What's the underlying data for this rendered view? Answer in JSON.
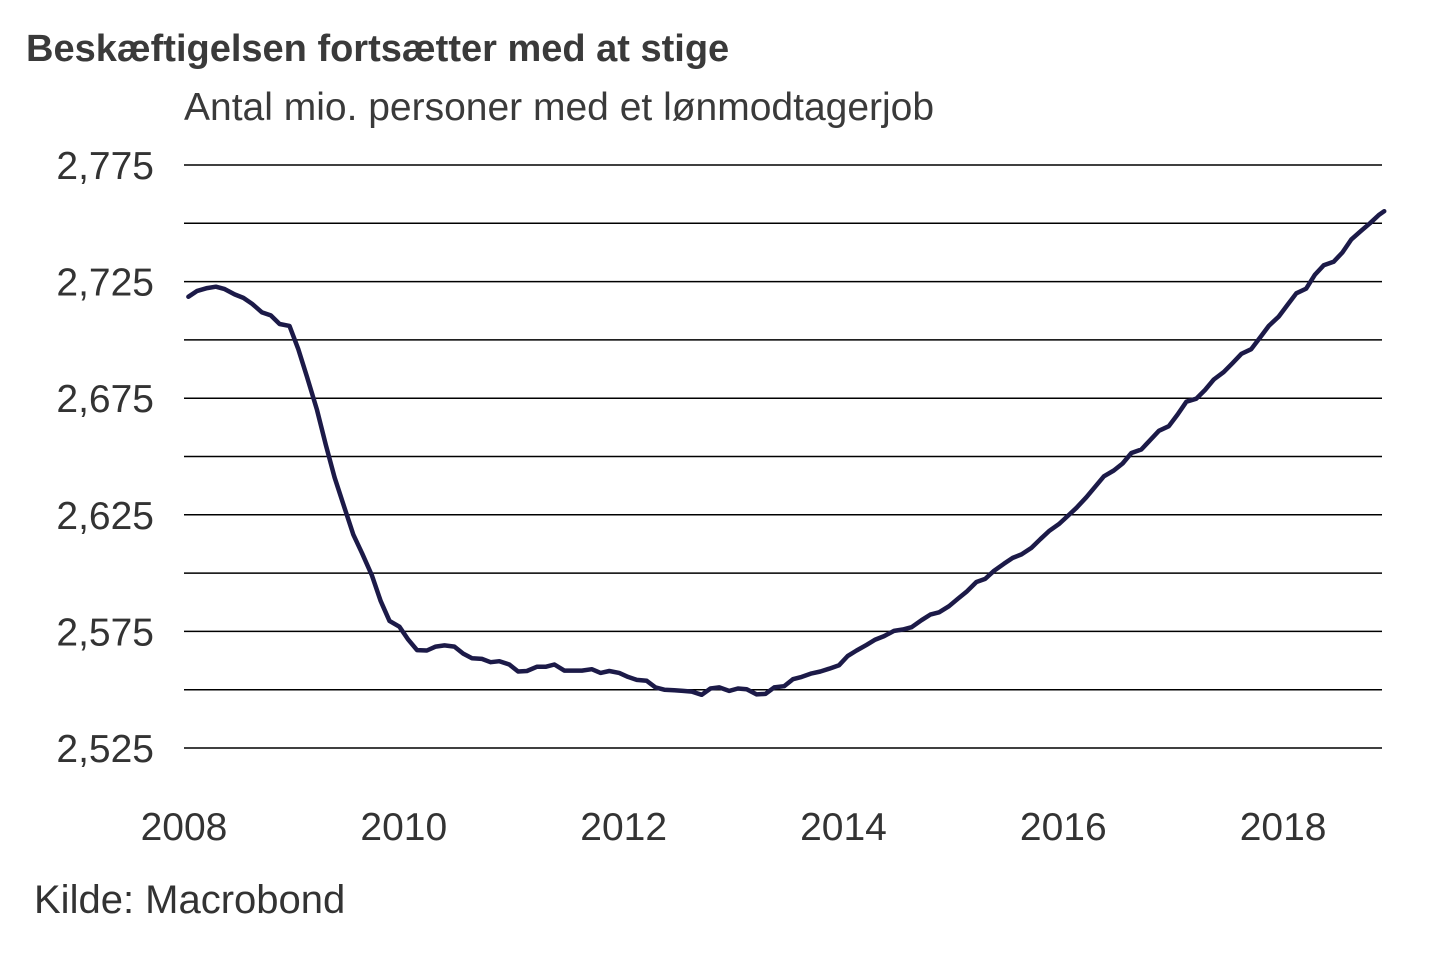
{
  "header": {
    "title": "Beskæftigelsen fortsætter med at stige",
    "subtitle": "Antal mio. personer med et lønmodtagerjob"
  },
  "footer": {
    "source": "Kilde: Macrobond"
  },
  "colors": {
    "line": "#1c1a48",
    "grid": "#000000",
    "text": "#333333"
  },
  "chart_data": {
    "type": "line",
    "title": "Beskæftigelsen fortsætter med at stige",
    "subtitle": "Antal mio. personer med et lønmodtagerjob",
    "xlabel": "",
    "ylabel": "",
    "xlim": [
      2008.0,
      2018.9
    ],
    "ylim": [
      2.525,
      2.775
    ],
    "grid": true,
    "grid_step": 0.025,
    "yticks": [
      {
        "value": 2.775,
        "label": "2,775"
      },
      {
        "value": 2.725,
        "label": "2,725"
      },
      {
        "value": 2.675,
        "label": "2,675"
      },
      {
        "value": 2.625,
        "label": "2,625"
      },
      {
        "value": 2.575,
        "label": "2,575"
      },
      {
        "value": 2.525,
        "label": "2,525"
      }
    ],
    "xticks": [
      {
        "value": 2008,
        "label": "2008"
      },
      {
        "value": 2010,
        "label": "2010"
      },
      {
        "value": 2012,
        "label": "2012"
      },
      {
        "value": 2014,
        "label": "2014"
      },
      {
        "value": 2016,
        "label": "2016"
      },
      {
        "value": 2018,
        "label": "2018"
      }
    ],
    "series": [
      {
        "values": [
          [
            2008.04,
            2.7185
          ],
          [
            2008.12,
            2.721
          ],
          [
            2008.21,
            2.7222
          ],
          [
            2008.29,
            2.7228
          ],
          [
            2008.37,
            2.7218
          ],
          [
            2008.46,
            2.7195
          ],
          [
            2008.54,
            2.718
          ],
          [
            2008.62,
            2.7155
          ],
          [
            2008.71,
            2.7118
          ],
          [
            2008.79,
            2.7105
          ],
          [
            2008.87,
            2.7068
          ],
          [
            2008.96,
            2.706
          ],
          [
            2009.04,
            2.696
          ],
          [
            2009.12,
            2.684
          ],
          [
            2009.21,
            2.67
          ],
          [
            2009.29,
            2.655
          ],
          [
            2009.37,
            2.641
          ],
          [
            2009.46,
            2.628
          ],
          [
            2009.54,
            2.6165
          ],
          [
            2009.62,
            2.6085
          ],
          [
            2009.71,
            2.599
          ],
          [
            2009.79,
            2.588
          ],
          [
            2009.87,
            2.5795
          ],
          [
            2009.96,
            2.577
          ],
          [
            2010.04,
            2.5715
          ],
          [
            2010.12,
            2.567
          ],
          [
            2010.21,
            2.5668
          ],
          [
            2010.29,
            2.5685
          ],
          [
            2010.37,
            2.569
          ],
          [
            2010.46,
            2.5685
          ],
          [
            2010.54,
            2.5655
          ],
          [
            2010.62,
            2.5635
          ],
          [
            2010.71,
            2.5632
          ],
          [
            2010.79,
            2.5618
          ],
          [
            2010.87,
            2.5622
          ],
          [
            2010.96,
            2.5608
          ],
          [
            2011.04,
            2.5578
          ],
          [
            2011.12,
            2.558
          ],
          [
            2011.21,
            2.5598
          ],
          [
            2011.29,
            2.5598
          ],
          [
            2011.37,
            2.5608
          ],
          [
            2011.46,
            2.5582
          ],
          [
            2011.54,
            2.5582
          ],
          [
            2011.62,
            2.5582
          ],
          [
            2011.71,
            2.5588
          ],
          [
            2011.79,
            2.5572
          ],
          [
            2011.87,
            2.558
          ],
          [
            2011.96,
            2.5572
          ],
          [
            2012.04,
            2.5555
          ],
          [
            2012.12,
            2.5542
          ],
          [
            2012.21,
            2.5538
          ],
          [
            2012.29,
            2.551
          ],
          [
            2012.37,
            2.55
          ],
          [
            2012.46,
            2.5498
          ],
          [
            2012.54,
            2.5495
          ],
          [
            2012.62,
            2.5492
          ],
          [
            2012.71,
            2.5478
          ],
          [
            2012.79,
            2.5505
          ],
          [
            2012.87,
            2.551
          ],
          [
            2012.96,
            2.5495
          ],
          [
            2013.04,
            2.5505
          ],
          [
            2013.12,
            2.5502
          ],
          [
            2013.21,
            2.548
          ],
          [
            2013.29,
            2.5482
          ],
          [
            2013.37,
            2.551
          ],
          [
            2013.46,
            2.5515
          ],
          [
            2013.54,
            2.5545
          ],
          [
            2013.62,
            2.5555
          ],
          [
            2013.71,
            2.557
          ],
          [
            2013.79,
            2.5578
          ],
          [
            2013.87,
            2.559
          ],
          [
            2013.96,
            2.5605
          ],
          [
            2014.04,
            2.5645
          ],
          [
            2014.12,
            2.5668
          ],
          [
            2014.21,
            2.5692
          ],
          [
            2014.29,
            2.5715
          ],
          [
            2014.37,
            2.573
          ],
          [
            2014.46,
            2.5752
          ],
          [
            2014.54,
            2.5758
          ],
          [
            2014.62,
            2.5768
          ],
          [
            2014.71,
            2.5798
          ],
          [
            2014.79,
            2.5822
          ],
          [
            2014.87,
            2.5832
          ],
          [
            2014.96,
            2.5858
          ],
          [
            2015.04,
            2.589
          ],
          [
            2015.12,
            2.592
          ],
          [
            2015.21,
            2.5962
          ],
          [
            2015.29,
            2.5975
          ],
          [
            2015.37,
            2.601
          ],
          [
            2015.46,
            2.604
          ],
          [
            2015.54,
            2.6065
          ],
          [
            2015.62,
            2.608
          ],
          [
            2015.71,
            2.6108
          ],
          [
            2015.79,
            2.6145
          ],
          [
            2015.87,
            2.618
          ],
          [
            2015.96,
            2.621
          ],
          [
            2016.04,
            2.6245
          ],
          [
            2016.12,
            2.628
          ],
          [
            2016.21,
            2.6325
          ],
          [
            2016.29,
            2.637
          ],
          [
            2016.37,
            2.6415
          ],
          [
            2016.46,
            2.644
          ],
          [
            2016.54,
            2.647
          ],
          [
            2016.62,
            2.6515
          ],
          [
            2016.71,
            2.653
          ],
          [
            2016.79,
            2.657
          ],
          [
            2016.87,
            2.661
          ],
          [
            2016.96,
            2.663
          ],
          [
            2017.04,
            2.668
          ],
          [
            2017.12,
            2.6735
          ],
          [
            2017.21,
            2.6748
          ],
          [
            2017.29,
            2.6785
          ],
          [
            2017.37,
            2.683
          ],
          [
            2017.46,
            2.6862
          ],
          [
            2017.54,
            2.69
          ],
          [
            2017.62,
            2.694
          ],
          [
            2017.71,
            2.696
          ],
          [
            2017.79,
            2.701
          ],
          [
            2017.87,
            2.706
          ],
          [
            2017.96,
            2.71
          ],
          [
            2018.04,
            2.715
          ],
          [
            2018.12,
            2.72
          ],
          [
            2018.21,
            2.722
          ],
          [
            2018.29,
            2.728
          ],
          [
            2018.37,
            2.732
          ],
          [
            2018.46,
            2.7335
          ],
          [
            2018.54,
            2.7375
          ],
          [
            2018.62,
            2.743
          ],
          [
            2018.71,
            2.7468
          ],
          [
            2018.79,
            2.75
          ],
          [
            2018.87,
            2.7535
          ],
          [
            2018.92,
            2.7552
          ]
        ]
      }
    ]
  }
}
